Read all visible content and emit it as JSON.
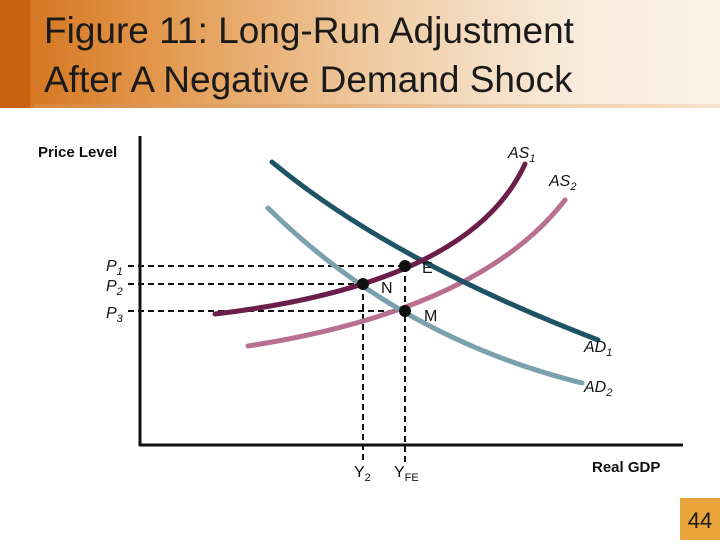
{
  "slide": {
    "title_line1": "Figure 11:  Long-Run Adjustment",
    "title_line2": "After A Negative Demand Shock",
    "page_number": "44"
  },
  "diagram": {
    "y_axis_label": "Price Level",
    "x_axis_label": "Real GDP",
    "curves": {
      "as1": {
        "base": "AS",
        "sub": "1",
        "color": "#6b1e4a"
      },
      "as2": {
        "base": "AS",
        "sub": "2",
        "color": "#b9708f"
      },
      "ad1": {
        "base": "AD",
        "sub": "1",
        "color": "#1e5366"
      },
      "ad2": {
        "base": "AD",
        "sub": "2",
        "color": "#7aa1ad"
      }
    },
    "price_levels": [
      {
        "id": "p1",
        "base": "P",
        "sub": "1"
      },
      {
        "id": "p2",
        "base": "P",
        "sub": "2"
      },
      {
        "id": "p3",
        "base": "P",
        "sub": "3"
      }
    ],
    "output_levels": [
      {
        "id": "y2",
        "base": "Y",
        "sub": "2"
      },
      {
        "id": "yfe",
        "base": "Y",
        "sub": "FE"
      }
    ],
    "points": [
      {
        "id": "e",
        "label": "E"
      },
      {
        "id": "n",
        "label": "N"
      },
      {
        "id": "m",
        "label": "M"
      }
    ]
  }
}
